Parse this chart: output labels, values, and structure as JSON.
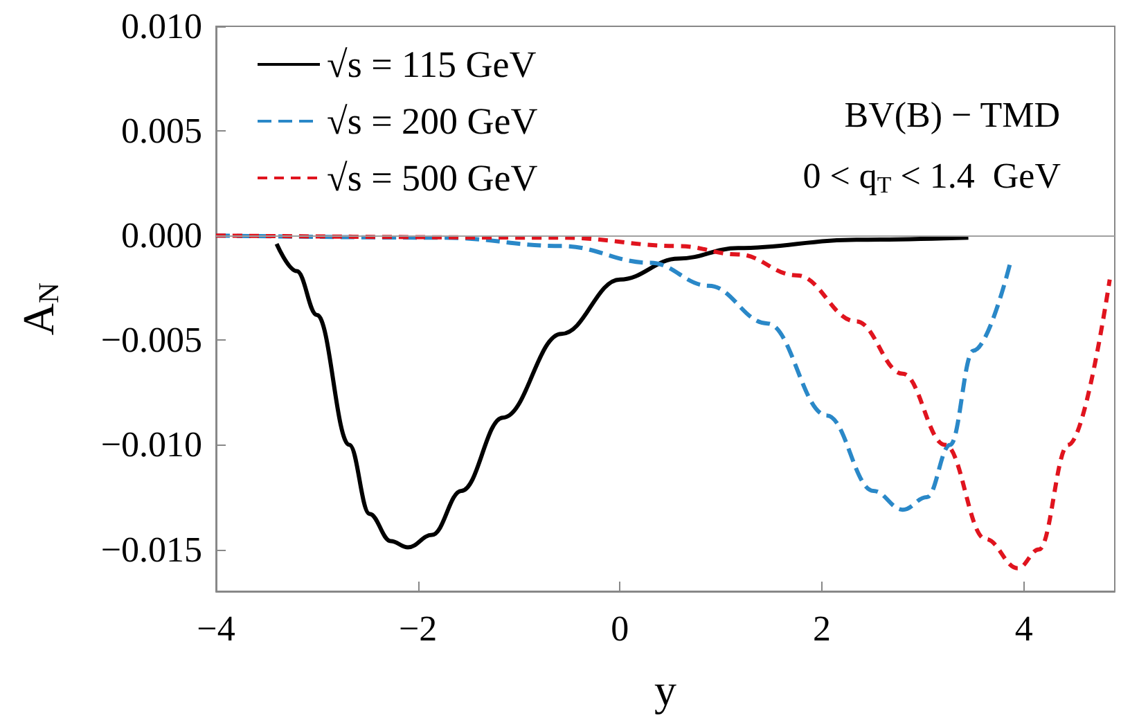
{
  "chart_data": {
    "type": "line",
    "xlabel": "y",
    "ylabel": "A$_{N}$",
    "xlim": [
      -4,
      4.9
    ],
    "xticks": [
      -4,
      -2,
      0,
      2,
      4
    ],
    "ylim": [
      -0.017,
      0.01
    ],
    "yticks": [
      {
        "value": -0.015,
        "label": "−0.015"
      },
      {
        "value": -0.01,
        "label": "−0.010"
      },
      {
        "value": -0.005,
        "label": "−0.005"
      },
      {
        "value": 0,
        "label": "0.000"
      },
      {
        "value": 0.005,
        "label": "0.005"
      },
      {
        "value": 0.01,
        "label": "0.010"
      }
    ],
    "grid": false,
    "legend": "top left",
    "marker": "none",
    "annotations": [
      "BV(B) − TMD",
      "0 < q$_{T}$ < 1.4  GeV"
    ],
    "ref_lines": [
      {
        "axis": "y",
        "value": 0,
        "color": "#a0a0a0"
      }
    ],
    "series": [
      {
        "name": "√s = 115 GeV",
        "color": "#000000",
        "line_style": "solid",
        "x": [
          -3.4,
          -3.2,
          -3.0,
          -2.68,
          -2.48,
          -2.27,
          -2.1,
          -1.86,
          -1.57,
          -1.16,
          -0.58,
          0.0,
          0.58,
          1.17,
          2.34,
          3.45
        ],
        "values": [
          -0.0004,
          -0.0017,
          -0.0038,
          -0.01,
          -0.0133,
          -0.0146,
          -0.0149,
          -0.0143,
          -0.0122,
          -0.0087,
          -0.0047,
          -0.0021,
          -0.0011,
          -0.0006,
          -0.0002,
          -0.0001
        ]
      },
      {
        "name": "√s = 200 GeV",
        "color": "#2a88c8",
        "line_style": "dashed",
        "x": [
          -4,
          -1.75,
          -0.58,
          0.3,
          0.88,
          1.46,
          2.05,
          2.51,
          2.8,
          3.04,
          3.27,
          3.5,
          3.86
        ],
        "values": [
          0.0,
          -0.0001,
          -0.0005,
          -0.0013,
          -0.0024,
          -0.0042,
          -0.0086,
          -0.0122,
          -0.0131,
          -0.0125,
          -0.01,
          -0.0055,
          -0.0014
        ]
      },
      {
        "name": "√s = 500 GeV",
        "color": "#e0141e",
        "line_style": "dotted",
        "x": [
          -4,
          -0.58,
          0.58,
          1.17,
          1.75,
          2.34,
          2.8,
          3.22,
          3.62,
          3.94,
          4.15,
          4.44,
          4.85
        ],
        "values": [
          0.0,
          -0.0001,
          -0.0005,
          -0.0009,
          -0.0019,
          -0.0041,
          -0.0066,
          -0.01,
          -0.0145,
          -0.0159,
          -0.015,
          -0.01,
          -0.0021
        ]
      }
    ]
  }
}
